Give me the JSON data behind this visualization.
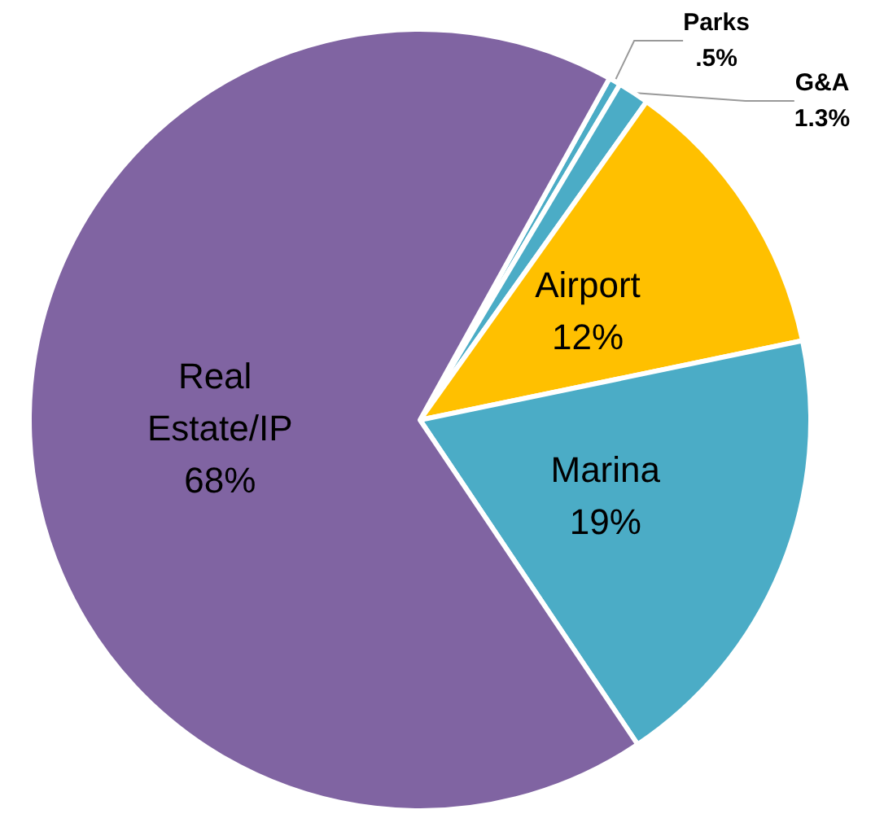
{
  "chart_data": {
    "type": "pie",
    "categories": [
      "Parks",
      "G&A",
      "Airport",
      "Marina",
      "Real Estate/IP"
    ],
    "values": [
      0.5,
      1.3,
      12,
      19,
      68
    ],
    "value_labels": [
      ".5%",
      "1.3%",
      "12%",
      "19%",
      "68%"
    ],
    "colors": [
      "#4bacc6",
      "#4bacc6",
      "#ffc000",
      "#4bacc6",
      "#8064a2"
    ]
  }
}
